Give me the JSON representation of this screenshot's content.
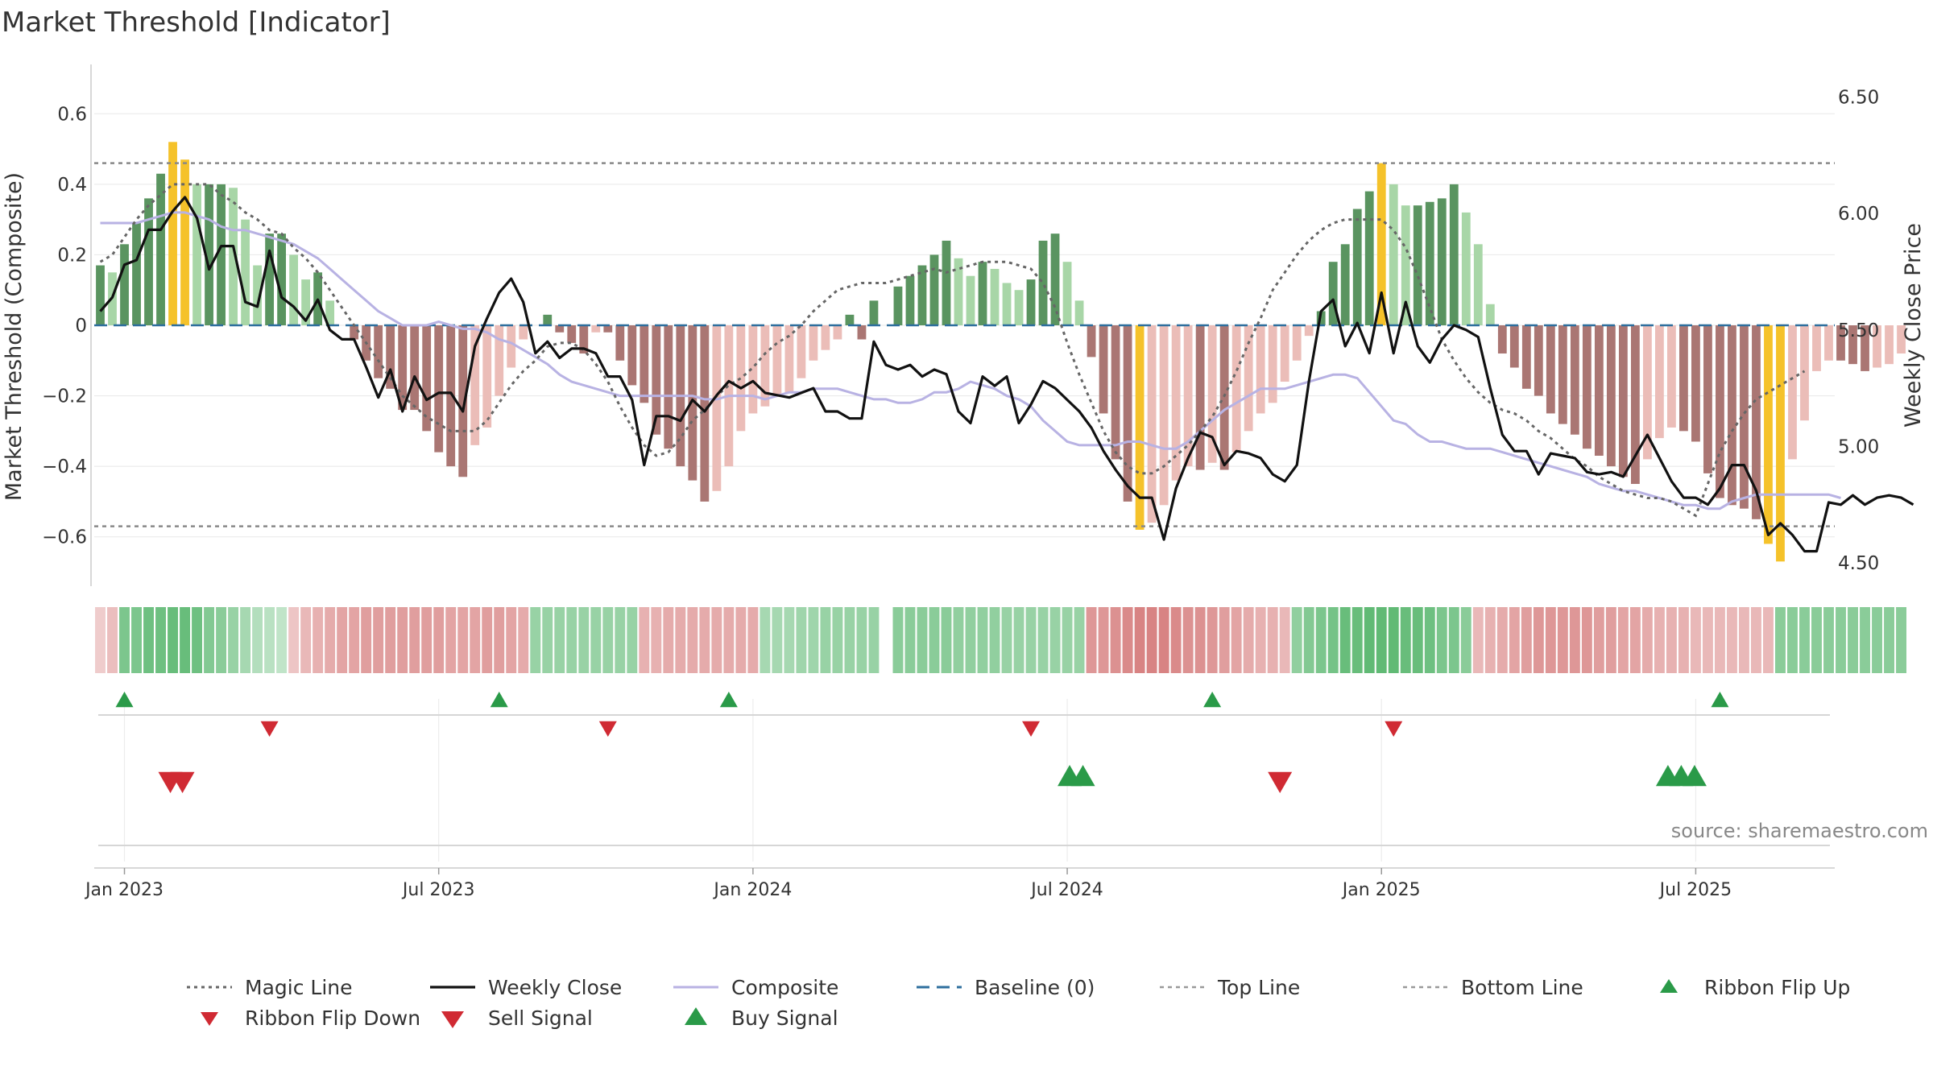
{
  "title": "Market Threshold [Indicator]",
  "source": "source: sharemaestro.com",
  "chart_data": {
    "type": "bar+line",
    "left_axis": {
      "label": "Market Threshold (Composite)",
      "ticks": [
        0.6,
        0.4,
        0.2,
        0,
        -0.2,
        -0.4,
        -0.6
      ],
      "tick_labels": [
        "0.6",
        "0.4",
        "0.2",
        "0",
        "−0.2",
        "−0.4",
        "−0.6"
      ],
      "ylim": [
        -0.74,
        0.74
      ]
    },
    "right_axis": {
      "label": "Weekly Close Price",
      "ticks": [
        6.5,
        6.0,
        5.5,
        5.0,
        4.5
      ],
      "tick_labels": [
        "6.50",
        "6.00",
        "5.50",
        "5.00",
        "4.50"
      ],
      "ylim": [
        4.4,
        6.64
      ]
    },
    "x_axis": {
      "tick_labels": [
        "Jan 2023",
        "Jul 2023",
        "Jan 2024",
        "Jul 2024",
        "Jan 2025",
        "Jul 2025"
      ],
      "tick_weeks": [
        2,
        28,
        54,
        80,
        106,
        132
      ],
      "n_weeks": 144
    },
    "top_line": 0.46,
    "bottom_line": -0.57,
    "composite_bars": [
      0.17,
      0.15,
      0.23,
      0.29,
      0.36,
      0.43,
      0.52,
      0.47,
      0.4,
      0.4,
      0.4,
      0.39,
      0.3,
      0.17,
      0.26,
      0.26,
      0.2,
      0.13,
      0.15,
      0.07,
      0,
      -0.04,
      -0.1,
      -0.15,
      -0.18,
      -0.24,
      -0.24,
      -0.3,
      -0.36,
      -0.4,
      -0.43,
      -0.34,
      -0.29,
      -0.2,
      -0.12,
      -0.04,
      0,
      0.03,
      -0.02,
      -0.05,
      -0.08,
      -0.02,
      -0.02,
      -0.1,
      -0.17,
      -0.22,
      -0.31,
      -0.35,
      -0.4,
      -0.44,
      -0.5,
      -0.47,
      -0.4,
      -0.3,
      -0.25,
      -0.23,
      -0.2,
      -0.19,
      -0.15,
      -0.1,
      -0.07,
      -0.04,
      0.03,
      -0.04,
      0.07,
      0,
      0.11,
      0.14,
      0.17,
      0.2,
      0.24,
      0.19,
      0.14,
      0.18,
      0.16,
      0.12,
      0.1,
      0.13,
      0.24,
      0.26,
      0.18,
      0.07,
      -0.09,
      -0.25,
      -0.38,
      -0.5,
      -0.58,
      -0.56,
      -0.51,
      -0.44,
      -0.4,
      -0.41,
      -0.39,
      -0.41,
      -0.36,
      -0.3,
      -0.25,
      -0.22,
      -0.16,
      -0.1,
      -0.03,
      0.04,
      0.18,
      0.23,
      0.33,
      0.38,
      0.46,
      0.4,
      0.34,
      0.34,
      0.35,
      0.36,
      0.4,
      0.32,
      0.23,
      0.06,
      -0.08,
      -0.12,
      -0.18,
      -0.2,
      -0.25,
      -0.28,
      -0.31,
      -0.35,
      -0.37,
      -0.4,
      -0.43,
      -0.45,
      -0.38,
      -0.32,
      -0.29,
      -0.3,
      -0.33,
      -0.42,
      -0.49,
      -0.51,
      -0.52,
      -0.55,
      -0.62,
      -0.67,
      -0.38,
      -0.27,
      -0.13,
      -0.1,
      -0.1,
      -0.11,
      -0.13,
      -0.12,
      -0.11,
      -0.08
    ],
    "weekly_close": [
      5.58,
      5.64,
      5.78,
      5.8,
      5.93,
      5.93,
      6.01,
      6.07,
      5.98,
      5.76,
      5.86,
      5.86,
      5.62,
      5.6,
      5.84,
      5.64,
      5.6,
      5.54,
      5.63,
      5.5,
      5.46,
      5.46,
      5.34,
      5.21,
      5.33,
      5.15,
      5.3,
      5.2,
      5.23,
      5.23,
      5.15,
      5.43,
      5.55,
      5.66,
      5.72,
      5.62,
      5.4,
      5.45,
      5.38,
      5.42,
      5.42,
      5.4,
      5.3,
      5.3,
      5.2,
      4.92,
      5.13,
      5.13,
      5.11,
      5.2,
      5.15,
      5.22,
      5.28,
      5.25,
      5.28,
      5.23,
      5.22,
      5.21,
      5.23,
      5.25,
      5.15,
      5.15,
      5.12,
      5.12,
      5.45,
      5.35,
      5.33,
      5.35,
      5.3,
      5.33,
      5.31,
      5.15,
      5.1,
      5.3,
      5.26,
      5.3,
      5.1,
      5.18,
      5.28,
      5.25,
      5.2,
      5.15,
      5.08,
      4.98,
      4.9,
      4.83,
      4.78,
      4.78,
      4.6,
      4.82,
      4.95,
      5.06,
      5.04,
      4.92,
      4.98,
      4.97,
      4.95,
      4.88,
      4.85,
      4.92,
      5.28,
      5.58,
      5.63,
      5.43,
      5.53,
      5.4,
      5.66,
      5.4,
      5.62,
      5.43,
      5.36,
      5.46,
      5.52,
      5.5,
      5.47,
      5.25,
      5.05,
      4.98,
      4.98,
      4.88,
      4.97,
      4.96,
      4.95,
      4.89,
      4.88,
      4.89,
      4.87,
      4.96,
      5.05,
      4.95,
      4.85,
      4.78,
      4.78,
      4.75,
      4.82,
      4.92,
      4.92,
      4.81,
      4.62,
      4.67,
      4.62,
      4.55,
      4.55,
      4.76,
      4.75,
      4.79,
      4.75,
      4.78,
      4.79,
      4.78,
      4.75
    ],
    "magic_line": [
      0.18,
      0.2,
      0.25,
      0.3,
      0.34,
      0.37,
      0.4,
      0.4,
      0.4,
      0.4,
      0.37,
      0.35,
      0.32,
      0.3,
      0.27,
      0.26,
      0.22,
      0.19,
      0.15,
      0.1,
      0.05,
      0,
      -0.05,
      -0.1,
      -0.15,
      -0.2,
      -0.23,
      -0.26,
      -0.28,
      -0.3,
      -0.3,
      -0.3,
      -0.27,
      -0.22,
      -0.17,
      -0.13,
      -0.1,
      -0.06,
      -0.05,
      -0.05,
      -0.07,
      -0.11,
      -0.16,
      -0.23,
      -0.29,
      -0.34,
      -0.37,
      -0.36,
      -0.32,
      -0.27,
      -0.24,
      -0.2,
      -0.17,
      -0.15,
      -0.12,
      -0.08,
      -0.05,
      -0.03,
      0,
      0.04,
      0.07,
      0.1,
      0.11,
      0.12,
      0.12,
      0.12,
      0.13,
      0.14,
      0.15,
      0.16,
      0.15,
      0.16,
      0.17,
      0.18,
      0.18,
      0.18,
      0.17,
      0.16,
      0.12,
      0.05,
      -0.05,
      -0.14,
      -0.22,
      -0.3,
      -0.36,
      -0.4,
      -0.42,
      -0.42,
      -0.4,
      -0.37,
      -0.34,
      -0.3,
      -0.26,
      -0.2,
      -0.13,
      -0.05,
      0.02,
      0.1,
      0.15,
      0.2,
      0.24,
      0.27,
      0.29,
      0.3,
      0.3,
      0.3,
      0.3,
      0.27,
      0.22,
      0.14,
      0.05,
      -0.04,
      -0.1,
      -0.15,
      -0.19,
      -0.22,
      -0.24,
      -0.25,
      -0.27,
      -0.3,
      -0.32,
      -0.35,
      -0.38,
      -0.4,
      -0.43,
      -0.45,
      -0.47,
      -0.48,
      -0.49,
      -0.49,
      -0.5,
      -0.52,
      -0.54,
      -0.45,
      -0.36,
      -0.3,
      -0.25,
      -0.21,
      -0.19,
      -0.17,
      -0.15,
      -0.13
    ],
    "composite_line": [
      0.29,
      0.29,
      0.29,
      0.29,
      0.3,
      0.31,
      0.32,
      0.32,
      0.31,
      0.3,
      0.28,
      0.27,
      0.27,
      0.26,
      0.25,
      0.24,
      0.23,
      0.21,
      0.19,
      0.16,
      0.13,
      0.1,
      0.07,
      0.04,
      0.02,
      0,
      0,
      0,
      0.01,
      0,
      -0.01,
      -0.01,
      -0.02,
      -0.04,
      -0.05,
      -0.07,
      -0.09,
      -0.11,
      -0.14,
      -0.16,
      -0.17,
      -0.18,
      -0.19,
      -0.2,
      -0.2,
      -0.2,
      -0.2,
      -0.2,
      -0.2,
      -0.2,
      -0.21,
      -0.21,
      -0.2,
      -0.2,
      -0.2,
      -0.21,
      -0.2,
      -0.19,
      -0.19,
      -0.18,
      -0.18,
      -0.18,
      -0.19,
      -0.2,
      -0.21,
      -0.21,
      -0.22,
      -0.22,
      -0.21,
      -0.19,
      -0.19,
      -0.18,
      -0.16,
      -0.17,
      -0.18,
      -0.2,
      -0.21,
      -0.23,
      -0.27,
      -0.3,
      -0.33,
      -0.34,
      -0.34,
      -0.34,
      -0.34,
      -0.33,
      -0.33,
      -0.34,
      -0.35,
      -0.35,
      -0.33,
      -0.3,
      -0.27,
      -0.24,
      -0.22,
      -0.2,
      -0.18,
      -0.18,
      -0.18,
      -0.17,
      -0.16,
      -0.15,
      -0.14,
      -0.14,
      -0.15,
      -0.19,
      -0.23,
      -0.27,
      -0.28,
      -0.31,
      -0.33,
      -0.33,
      -0.34,
      -0.35,
      -0.35,
      -0.35,
      -0.36,
      -0.37,
      -0.38,
      -0.39,
      -0.4,
      -0.41,
      -0.42,
      -0.43,
      -0.45,
      -0.46,
      -0.47,
      -0.47,
      -0.48,
      -0.49,
      -0.5,
      -0.51,
      -0.51,
      -0.52,
      -0.52,
      -0.5,
      -0.49,
      -0.48,
      -0.48,
      -0.48,
      -0.48,
      -0.48,
      -0.48,
      -0.48,
      -0.49
    ],
    "ribbon": [
      -0.15,
      -0.25,
      0.6,
      0.6,
      0.7,
      0.7,
      0.75,
      0.75,
      0.7,
      0.55,
      0.5,
      0.4,
      0.3,
      0.2,
      0.15,
      0.1,
      -0.2,
      -0.3,
      -0.35,
      -0.4,
      -0.45,
      -0.45,
      -0.5,
      -0.5,
      -0.5,
      -0.5,
      -0.5,
      -0.5,
      -0.5,
      -0.45,
      -0.45,
      -0.45,
      -0.5,
      -0.5,
      -0.45,
      -0.4,
      0.4,
      0.4,
      0.4,
      0.4,
      0.4,
      0.4,
      0.4,
      0.4,
      0.4,
      -0.35,
      -0.35,
      -0.4,
      -0.4,
      -0.4,
      -0.4,
      -0.4,
      -0.4,
      -0.4,
      -0.4,
      0.3,
      0.3,
      0.3,
      0.35,
      0.35,
      0.4,
      0.4,
      0.4,
      0.4,
      0.4,
      null,
      0.5,
      0.5,
      0.5,
      0.5,
      0.5,
      0.45,
      0.45,
      0.45,
      0.45,
      0.4,
      0.4,
      0.4,
      0.4,
      0.4,
      0.4,
      0.4,
      -0.55,
      -0.55,
      -0.6,
      -0.65,
      -0.7,
      -0.7,
      -0.7,
      -0.65,
      -0.6,
      -0.6,
      -0.55,
      -0.5,
      -0.45,
      -0.4,
      -0.35,
      -0.35,
      -0.3,
      0.45,
      0.55,
      0.6,
      0.65,
      0.75,
      0.75,
      0.8,
      0.8,
      0.8,
      0.75,
      0.75,
      0.7,
      0.6,
      0.6,
      0.5,
      -0.3,
      -0.35,
      -0.4,
      -0.45,
      -0.5,
      -0.55,
      -0.55,
      -0.55,
      -0.55,
      -0.55,
      -0.5,
      -0.5,
      -0.45,
      -0.45,
      -0.4,
      -0.35,
      -0.35,
      -0.35,
      -0.3,
      -0.3,
      -0.3,
      -0.3,
      -0.3,
      -0.3,
      -0.3,
      0.5,
      0.5,
      0.5,
      0.5,
      0.5,
      0.5,
      0.5,
      0.5,
      0.5,
      0.5,
      0.5
    ],
    "signals": {
      "ribbon_flip_up": [
        2,
        33,
        52,
        92,
        134
      ],
      "ribbon_flip_down": [
        14,
        42,
        77,
        107
      ],
      "buy_signal": [
        80.2,
        81.3,
        129.7,
        130.8,
        131.9
      ],
      "sell_signal": [
        5.8,
        6.8,
        97.6
      ]
    },
    "legend": [
      {
        "label": "Magic Line",
        "style": "dotted"
      },
      {
        "label": "Weekly Close",
        "style": "solid"
      },
      {
        "label": "Composite",
        "style": "solid-lavender"
      },
      {
        "label": "Baseline (0)",
        "style": "dashed"
      },
      {
        "label": "Top Line",
        "style": "dotted-gray"
      },
      {
        "label": "Bottom Line",
        "style": "dotted-gray"
      },
      {
        "label": "Ribbon Flip Up",
        "style": "marker-up"
      },
      {
        "label": "Ribbon Flip Down",
        "style": "marker-down"
      },
      {
        "label": "Sell Signal",
        "style": "marker-down-large"
      },
      {
        "label": "Buy Signal",
        "style": "marker-up-large"
      }
    ]
  },
  "colors": {
    "pos_dark": "#5a9460",
    "pos_light": "#a8d6a7",
    "neg_dark": "#aa7673",
    "neg_light": "#ebbdb8",
    "extreme": "#f5c22a",
    "close": "#111111",
    "composite": "#b8b2e3",
    "magic": "#666666",
    "baseline": "#2e6f9e",
    "grid": "#e8e8e8",
    "up_marker": "#2a9a48",
    "down_marker": "#d02a33"
  }
}
